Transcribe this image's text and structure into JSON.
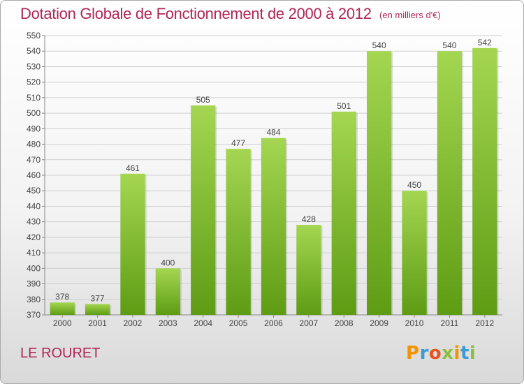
{
  "header": {
    "title": "Dotation Globale de Fonctionnement de 2000 à 2012",
    "subtitle": "(en milliers d'€)"
  },
  "footer": {
    "place": "LE ROURET",
    "logo_letters": [
      "P",
      "r",
      "o",
      "x",
      "i",
      "t",
      "i"
    ]
  },
  "colors": {
    "title": "#b02657",
    "bar_light": "#a4d651",
    "bar_dark": "#5e9c14",
    "grid": "#cfcfcf"
  },
  "chart_data": {
    "type": "bar",
    "categories": [
      "2000",
      "2001",
      "2002",
      "2003",
      "2004",
      "2005",
      "2006",
      "2007",
      "2008",
      "2009",
      "2010",
      "2011",
      "2012"
    ],
    "values": [
      378,
      377,
      461,
      400,
      505,
      477,
      484,
      428,
      501,
      540,
      450,
      540,
      542
    ],
    "title": "Dotation Globale de Fonctionnement de 2000 à 2012",
    "subtitle": "(en milliers d'€)",
    "xlabel": "",
    "ylabel": "",
    "ylim": [
      370,
      550
    ],
    "yticks": [
      370,
      380,
      390,
      400,
      410,
      420,
      430,
      440,
      450,
      460,
      470,
      480,
      490,
      500,
      510,
      520,
      530,
      540,
      550
    ],
    "grid": true,
    "data_labels": true
  }
}
